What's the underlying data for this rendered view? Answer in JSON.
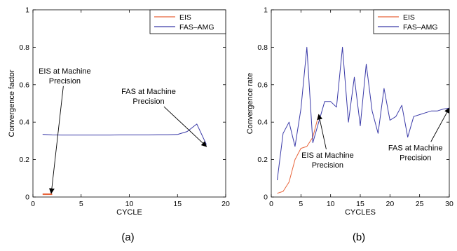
{
  "colors": {
    "eis": "#e8643a",
    "fas": "#3a3aa8",
    "axis": "#000000"
  },
  "chart_data": [
    {
      "type": "line",
      "caption": "(a)",
      "xlabel": "CYCLE",
      "ylabel": "Convergence factor",
      "xlim": [
        0,
        20
      ],
      "ylim": [
        0,
        1
      ],
      "xticks": [
        0,
        5,
        10,
        15,
        20
      ],
      "yticks": [
        0,
        0.2,
        0.4,
        0.6,
        0.8,
        1
      ],
      "ytick_labels": [
        "0",
        "0.2",
        "0.4",
        "0.6",
        "0.8",
        "1"
      ],
      "grid": false,
      "legend_position": "top-right",
      "series": [
        {
          "name": "EIS",
          "color": "#e8643a",
          "x": [
            1,
            2
          ],
          "y": [
            0.015,
            0.015
          ]
        },
        {
          "name": "FAS–AMG",
          "color": "#3a3aa8",
          "x": [
            1,
            2,
            3,
            4,
            5,
            6,
            7,
            8,
            9,
            10,
            11,
            12,
            13,
            14,
            15,
            16,
            17,
            18
          ],
          "y": [
            0.335,
            0.332,
            0.331,
            0.331,
            0.331,
            0.331,
            0.331,
            0.331,
            0.332,
            0.332,
            0.332,
            0.332,
            0.333,
            0.333,
            0.334,
            0.35,
            0.39,
            0.28
          ]
        }
      ],
      "annotations": [
        {
          "lines": [
            "EIS at Machine",
            "Precision"
          ],
          "x": 3.3,
          "y": 0.66,
          "point_to": [
            1.9,
            0.02
          ]
        },
        {
          "lines": [
            "FAS at Machine",
            "Precision"
          ],
          "x": 12.0,
          "y": 0.55,
          "point_to": [
            18.0,
            0.27
          ]
        }
      ]
    },
    {
      "type": "line",
      "caption": "(b)",
      "xlabel": "CYCLES",
      "ylabel": "Convergence rate",
      "xlim": [
        0,
        30
      ],
      "ylim": [
        0,
        1
      ],
      "xticks": [
        0,
        5,
        10,
        15,
        20,
        25,
        30
      ],
      "yticks": [
        0,
        0.2,
        0.4,
        0.6,
        0.8,
        1
      ],
      "ytick_labels": [
        "0",
        "0.2",
        "0.4",
        "0.6",
        "0.8",
        "1"
      ],
      "grid": false,
      "legend_position": "top-right",
      "series": [
        {
          "name": "EIS",
          "color": "#e8643a",
          "x": [
            1,
            2,
            3,
            4,
            5,
            6,
            7,
            8
          ],
          "y": [
            0.02,
            0.03,
            0.08,
            0.2,
            0.26,
            0.27,
            0.32,
            0.44
          ]
        },
        {
          "name": "FAS–AMG",
          "color": "#3a3aa8",
          "x": [
            1,
            2,
            3,
            4,
            5,
            6,
            7,
            8,
            9,
            10,
            11,
            12,
            13,
            14,
            15,
            16,
            17,
            18,
            19,
            20,
            21,
            22,
            23,
            24,
            25,
            26,
            27,
            28,
            29,
            30
          ],
          "y": [
            0.09,
            0.34,
            0.4,
            0.27,
            0.47,
            0.8,
            0.29,
            0.4,
            0.51,
            0.51,
            0.48,
            0.8,
            0.4,
            0.64,
            0.38,
            0.71,
            0.46,
            0.34,
            0.58,
            0.41,
            0.43,
            0.49,
            0.32,
            0.43,
            0.44,
            0.45,
            0.46,
            0.46,
            0.47,
            0.475
          ]
        }
      ],
      "annotations": [
        {
          "lines": [
            "EIS at Machine",
            "Precision"
          ],
          "x": 9.5,
          "y": 0.21,
          "point_to": [
            8.0,
            0.44
          ]
        },
        {
          "lines": [
            "FAS at Machine",
            "Precision"
          ],
          "x": 24.3,
          "y": 0.25,
          "point_to": [
            30,
            0.475
          ]
        }
      ]
    }
  ]
}
